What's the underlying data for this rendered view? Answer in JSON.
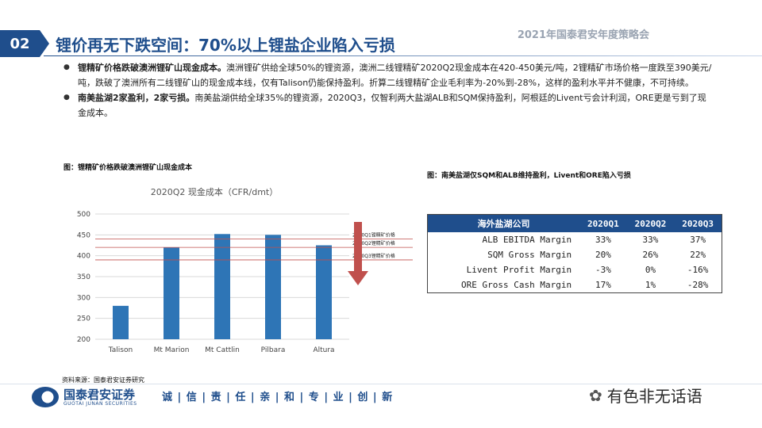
{
  "header": {
    "slide_number": "02",
    "title": "锂价再无下跌空间：70%以上锂盐企业陷入亏损",
    "conference": "2021年国泰君安年度策略会"
  },
  "bullets": [
    {
      "bold": "锂精矿价格跌破澳洲锂矿山现金成本。",
      "text": "澳洲锂矿供给全球50%的锂资源，澳洲二线锂精矿2020Q2现金成本在420-450美元/吨，2锂精矿市场价格一度跌至390美元/吨，跌破了澳洲所有二线锂矿山的现金成本线，仅有Talison仍能保持盈利。折算二线锂精矿企业毛利率为-20%到-28%，这样的盈利水平并不健康，不可持续。"
    },
    {
      "bold": "南美盐湖2家盈利，2家亏损。",
      "text": "南美盐湖供给全球35%的锂资源，2020Q3，仅智利两大盐湖ALB和SQM保持盈利，阿根廷的Livent亏会计利润，ORE更是亏到了现金成本。"
    }
  ],
  "captions": {
    "left": "图：锂精矿价格跌破澳洲锂矿山现金成本",
    "right": "图：南美盐湖仅SQM和ALB维持盈利，Livent和ORE陷入亏损"
  },
  "chart_data": {
    "type": "bar",
    "title": "2020Q2 现金成本（CFR/dmt）",
    "categories": [
      "Talison",
      "Mt Marion",
      "Mt Cattlin",
      "Pilbara",
      "Altura"
    ],
    "values": [
      280,
      420,
      452,
      450,
      425
    ],
    "ylim": [
      200,
      500
    ],
    "yticks": [
      200,
      250,
      300,
      350,
      400,
      450,
      500
    ],
    "bar_color": "#2e75b6",
    "reference_lines": [
      {
        "label": "2020Q1锂精矿价格",
        "value": 440,
        "color": "#c0504d"
      },
      {
        "label": "2020Q2锂精矿价格",
        "value": 420,
        "color": "#c0504d"
      },
      {
        "label": "2020Q3锂精矿价格",
        "value": 390,
        "color": "#c0504d"
      }
    ],
    "grid": true
  },
  "table": {
    "headers": [
      "海外盐湖公司",
      "2020Q1",
      "2020Q2",
      "2020Q3"
    ],
    "rows": [
      [
        "ALB EBITDA Margin",
        "33%",
        "33%",
        "37%"
      ],
      [
        "SQM Gross Margin",
        "20%",
        "26%",
        "22%"
      ],
      [
        "Livent Profit Margin",
        "-3%",
        "0%",
        "-16%"
      ],
      [
        "ORE Gross Cash Margin",
        "17%",
        "1%",
        "-28%"
      ]
    ]
  },
  "footer": {
    "source": "资料来源：国泰君安证券研究",
    "logo_cn": "国泰君安证券",
    "logo_en": "GUOTAI JUNAN SECURITIES",
    "motto": "诚 | 信 | 责 | 任 | 亲 | 和 | 专 | 业 | 创 | 新",
    "watermark": "有色非无话语",
    "accent": "#1f4e8c"
  }
}
